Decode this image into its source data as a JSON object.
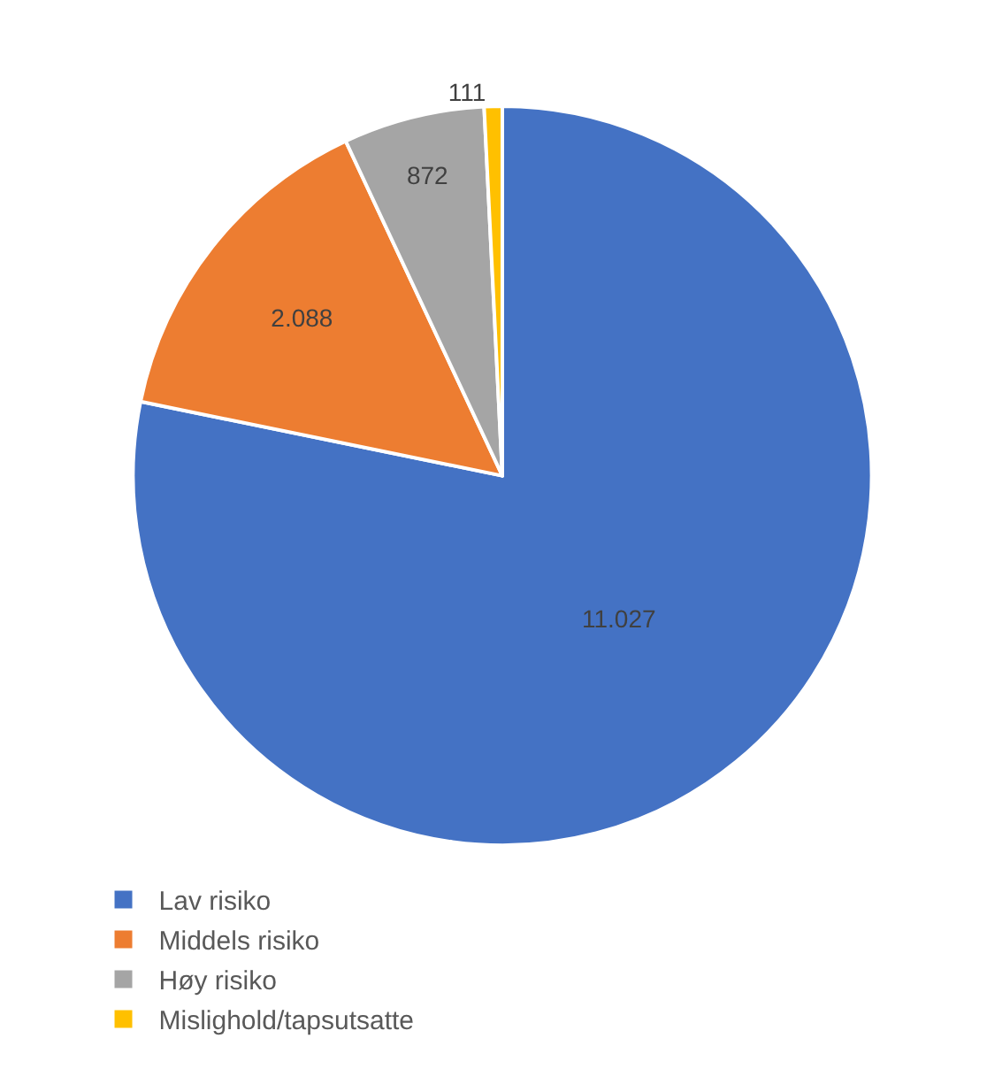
{
  "chart_data": {
    "type": "pie",
    "categories": [
      "Lav risiko",
      "Middels risiko",
      "Høy risiko",
      "Mislighold/tapsutsatte"
    ],
    "values": [
      11027,
      2088,
      872,
      111
    ],
    "value_labels": [
      "11.027",
      "2.088",
      "872",
      "111"
    ],
    "colors": [
      "#4472c4",
      "#ed7d31",
      "#a5a5a5",
      "#ffc000"
    ],
    "legend": "bottom"
  }
}
